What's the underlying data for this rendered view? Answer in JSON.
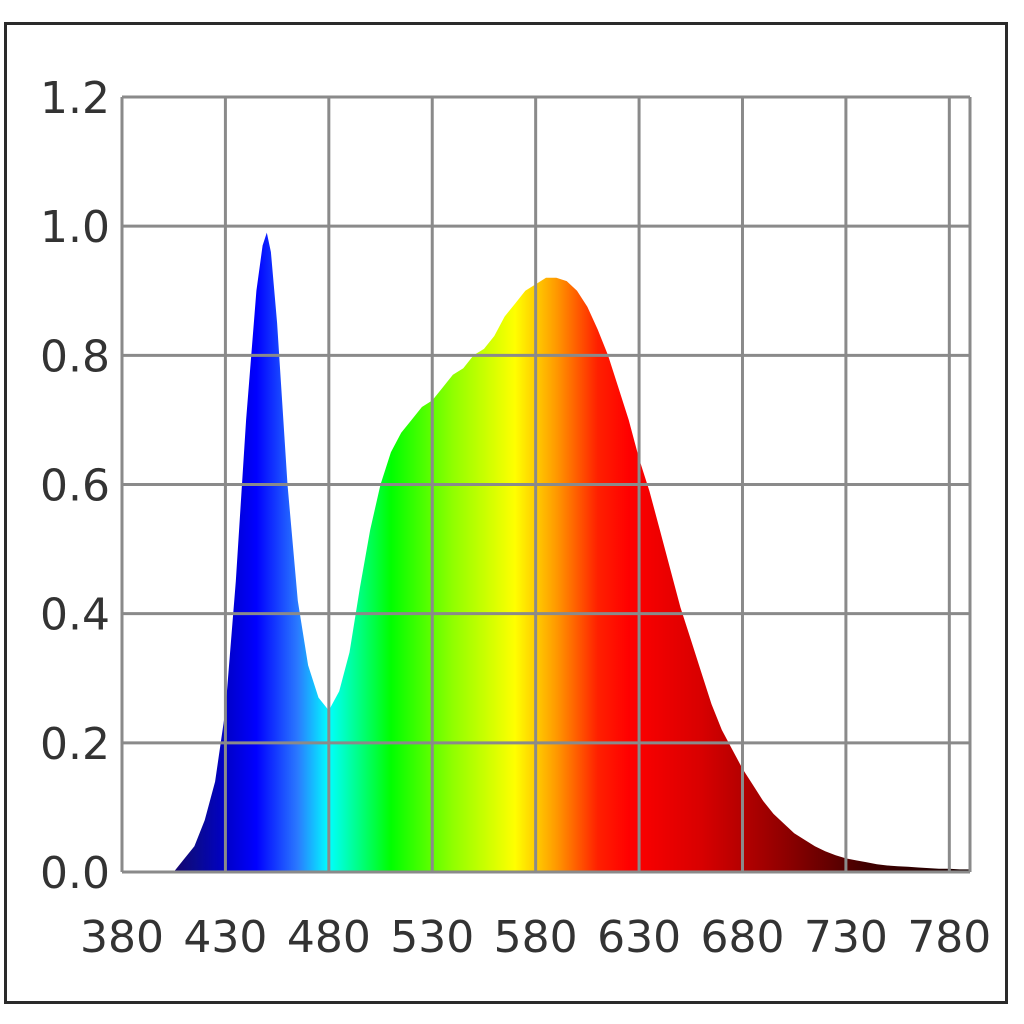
{
  "chart_data": {
    "type": "area",
    "title": "",
    "xlabel": "",
    "ylabel": "",
    "xlim": [
      380,
      790
    ],
    "ylim": [
      0,
      1.2
    ],
    "grid": true,
    "fill": "spectral-gradient",
    "x_ticks": [
      "380",
      "430",
      "480",
      "530",
      "580",
      "630",
      "680",
      "730",
      "780"
    ],
    "y_ticks": [
      "0.0",
      "0.2",
      "0.4",
      "0.6",
      "0.8",
      "1.0",
      "1.2"
    ],
    "series": [
      {
        "x": [
          405,
          410,
          415,
          420,
          425,
          430,
          435,
          440,
          445,
          448,
          450,
          452,
          455,
          460,
          465,
          470,
          475,
          480,
          485,
          490,
          495,
          500,
          505,
          510,
          515,
          520,
          525,
          530,
          535,
          540,
          545,
          550,
          555,
          560,
          565,
          570,
          575,
          580,
          585,
          590,
          595,
          600,
          605,
          610,
          615,
          620,
          625,
          630,
          635,
          640,
          645,
          650,
          655,
          660,
          665,
          670,
          675,
          680,
          685,
          690,
          695,
          700,
          705,
          710,
          715,
          720,
          725,
          730,
          735,
          740,
          745,
          750,
          755,
          760,
          765,
          770,
          775,
          780,
          785,
          790
        ],
        "y": [
          0.0,
          0.02,
          0.04,
          0.08,
          0.14,
          0.25,
          0.45,
          0.7,
          0.9,
          0.97,
          0.99,
          0.96,
          0.85,
          0.6,
          0.42,
          0.32,
          0.27,
          0.25,
          0.28,
          0.34,
          0.44,
          0.53,
          0.6,
          0.65,
          0.68,
          0.7,
          0.72,
          0.73,
          0.75,
          0.77,
          0.78,
          0.8,
          0.81,
          0.83,
          0.86,
          0.88,
          0.9,
          0.91,
          0.92,
          0.92,
          0.915,
          0.9,
          0.875,
          0.84,
          0.8,
          0.75,
          0.7,
          0.64,
          0.59,
          0.53,
          0.47,
          0.41,
          0.36,
          0.31,
          0.26,
          0.22,
          0.19,
          0.16,
          0.135,
          0.11,
          0.09,
          0.075,
          0.06,
          0.05,
          0.04,
          0.032,
          0.026,
          0.021,
          0.018,
          0.015,
          0.012,
          0.01,
          0.009,
          0.008,
          0.007,
          0.006,
          0.005,
          0.005,
          0.004,
          0.004
        ]
      }
    ]
  }
}
